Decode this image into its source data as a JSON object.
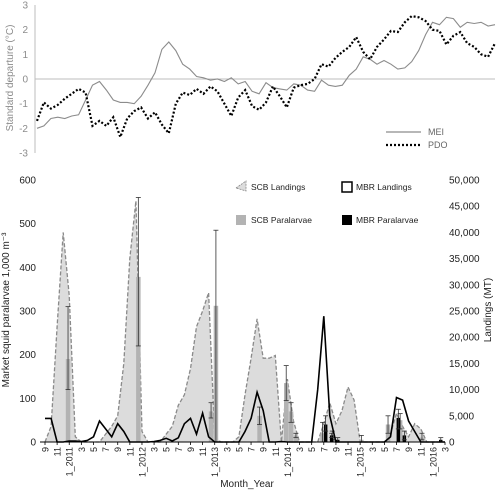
{
  "top_chart": {
    "type": "line",
    "ylabel": "Standard departure (°C)",
    "ylim": [
      -3,
      3
    ],
    "yticks": [
      3,
      2,
      1,
      0,
      -1,
      -2,
      -3
    ],
    "month_range": [
      1,
      67
    ],
    "legend": {
      "placement": "bottom-right"
    },
    "series": [
      {
        "name": "MEI",
        "style": "solid",
        "color": "#8c8c8c",
        "x": [
          1,
          2,
          3,
          4,
          5,
          6,
          7,
          8,
          9,
          10,
          11,
          12,
          13,
          14,
          15,
          16,
          17,
          18,
          19,
          20,
          21,
          22,
          23,
          24,
          25,
          26,
          27,
          28,
          29,
          30,
          31,
          32,
          33,
          34,
          35,
          36,
          37,
          38,
          39,
          40,
          41,
          42,
          43,
          44,
          45,
          46,
          47,
          48,
          49,
          50,
          51,
          52,
          53,
          54,
          55,
          56,
          57,
          58,
          59,
          60,
          61,
          62,
          63,
          64,
          65,
          66,
          67
        ],
        "y": [
          -2.0,
          -1.9,
          -1.6,
          -1.55,
          -1.6,
          -1.5,
          -1.45,
          -0.85,
          -0.25,
          -0.1,
          -0.45,
          -0.85,
          -0.95,
          -0.95,
          -1.0,
          -0.7,
          -0.25,
          0.25,
          1.2,
          1.5,
          1.15,
          0.6,
          0.4,
          0.1,
          0.05,
          -0.05,
          0.0,
          -0.1,
          0.05,
          -0.2,
          -0.1,
          -0.5,
          -0.6,
          -0.15,
          -0.35,
          -0.4,
          -0.45,
          -0.2,
          -0.25,
          -0.45,
          -0.5,
          -0.05,
          -0.25,
          -0.3,
          -0.25,
          0.15,
          0.4,
          0.9,
          0.8,
          0.6,
          0.75,
          0.6,
          0.4,
          0.45,
          0.7,
          1.15,
          1.8,
          2.3,
          2.2,
          2.5,
          2.45,
          2.1,
          2.3,
          2.25,
          2.3,
          2.15,
          2.2
        ]
      },
      {
        "name": "PDO",
        "style": "dotted",
        "color": "#000000",
        "x": [
          1,
          2,
          3,
          4,
          5,
          6,
          7,
          8,
          9,
          10,
          11,
          12,
          13,
          14,
          15,
          16,
          17,
          18,
          19,
          20,
          21,
          22,
          23,
          24,
          25,
          26,
          27,
          28,
          29,
          30,
          31,
          32,
          33,
          34,
          35,
          36,
          37,
          38,
          39,
          40,
          41,
          42,
          43,
          44,
          45,
          46,
          47,
          48,
          49,
          50,
          51,
          52,
          53,
          54,
          55,
          56,
          57,
          58,
          59,
          60,
          61,
          62,
          63,
          64,
          65,
          66,
          67
        ],
        "y": [
          -1.7,
          -0.95,
          -1.2,
          -1.05,
          -0.8,
          -0.6,
          -0.4,
          -0.55,
          -1.9,
          -1.7,
          -1.9,
          -1.55,
          -2.35,
          -1.6,
          -1.3,
          -1.15,
          -1.6,
          -1.35,
          -1.85,
          -2.2,
          -1.0,
          -0.55,
          -0.65,
          -0.4,
          -0.6,
          -0.3,
          -0.5,
          -1.0,
          -1.5,
          -0.75,
          -0.45,
          -1.1,
          -1.25,
          -0.95,
          -0.3,
          -0.7,
          -1.15,
          -0.35,
          -0.25,
          -0.2,
          0.0,
          0.6,
          0.5,
          0.85,
          1.1,
          1.3,
          1.7,
          1.1,
          0.8,
          1.3,
          1.6,
          1.95,
          1.9,
          2.3,
          2.55,
          2.5,
          2.35,
          2.0,
          1.95,
          1.4,
          1.75,
          1.9,
          1.45,
          1.3,
          1.0,
          0.9,
          1.45
        ]
      }
    ]
  },
  "bottom_chart": {
    "type": "bar+area+line",
    "xlabel": "Month_Year",
    "ylabel_left": "Market squid paralarvae 1,000 m⁻³",
    "ylabel_right": "Landings (MT)",
    "ylim_left": [
      0,
      600
    ],
    "ylim_right": [
      0,
      50000
    ],
    "yticks_left": [
      "600",
      "500",
      "400",
      "300",
      "200",
      "100",
      "0"
    ],
    "yticks_right": [
      "50,000",
      "45,000",
      "40,000",
      "35,000",
      "30,000",
      "25,000",
      "20,000",
      "15,000",
      "10,000",
      "5,000",
      "0"
    ],
    "month_range": [
      1,
      67
    ],
    "xticks": [
      {
        "m": 1,
        "label": "9"
      },
      {
        "m": 3,
        "label": "11"
      },
      {
        "m": 5,
        "label": "1_2011"
      },
      {
        "m": 7,
        "label": "3"
      },
      {
        "m": 9,
        "label": "5"
      },
      {
        "m": 11,
        "label": "7"
      },
      {
        "m": 13,
        "label": "9"
      },
      {
        "m": 15,
        "label": "11"
      },
      {
        "m": 17,
        "label": "1_2012"
      },
      {
        "m": 19,
        "label": "3"
      },
      {
        "m": 21,
        "label": "5"
      },
      {
        "m": 23,
        "label": "7"
      },
      {
        "m": 25,
        "label": "9"
      },
      {
        "m": 27,
        "label": "11"
      },
      {
        "m": 29,
        "label": "1_2013"
      },
      {
        "m": 31,
        "label": "3"
      },
      {
        "m": 33,
        "label": "5"
      },
      {
        "m": 35,
        "label": "7"
      },
      {
        "m": 37,
        "label": "9"
      },
      {
        "m": 39,
        "label": "11"
      },
      {
        "m": 41,
        "label": "1_2014"
      },
      {
        "m": 43,
        "label": "3"
      },
      {
        "m": 45,
        "label": "5"
      },
      {
        "m": 47,
        "label": "7"
      },
      {
        "m": 49,
        "label": "9"
      },
      {
        "m": 51,
        "label": "11"
      },
      {
        "m": 53,
        "label": "1_2015"
      },
      {
        "m": 55,
        "label": "3"
      },
      {
        "m": 57,
        "label": "5"
      },
      {
        "m": 59,
        "label": "7"
      },
      {
        "m": 61,
        "label": "9"
      },
      {
        "m": 63,
        "label": "11"
      },
      {
        "m": 65,
        "label": "1_2016"
      },
      {
        "m": 67,
        "label": "3"
      }
    ],
    "legend": [
      {
        "key": "scb_landings",
        "label": "SCB Landings",
        "placement": "top-left"
      },
      {
        "key": "mbr_landings",
        "label": "MBR Landings",
        "placement": "top-right"
      },
      {
        "key": "scb_paralarvae",
        "label": "SCB Paralarvae",
        "placement": "top-left"
      },
      {
        "key": "mbr_paralarvae",
        "label": "MBR Paralarvae",
        "placement": "top-right"
      }
    ],
    "scb_landings": {
      "axis": "right",
      "color": "#dcdcdc",
      "points": [
        [
          1,
          0
        ],
        [
          2,
          3000
        ],
        [
          3,
          22000
        ],
        [
          4,
          40000
        ],
        [
          5,
          28000
        ],
        [
          6,
          1000
        ],
        [
          7,
          0
        ],
        [
          10,
          0
        ],
        [
          11,
          1500
        ],
        [
          12,
          3000
        ],
        [
          13,
          5000
        ],
        [
          14,
          15000
        ],
        [
          15,
          35000
        ],
        [
          16,
          46000
        ],
        [
          17,
          2000
        ],
        [
          18,
          0
        ],
        [
          20,
          0
        ],
        [
          21,
          1500
        ],
        [
          22,
          3000
        ],
        [
          23,
          7000
        ],
        [
          24,
          9000
        ],
        [
          25,
          14000
        ],
        [
          26,
          22000
        ],
        [
          27,
          25000
        ],
        [
          28,
          28500
        ],
        [
          29,
          1000
        ],
        [
          30,
          0
        ],
        [
          32,
          0
        ],
        [
          33,
          1000
        ],
        [
          34,
          9000
        ],
        [
          35,
          16000
        ],
        [
          36,
          23500
        ],
        [
          37,
          16000
        ],
        [
          38,
          16000
        ],
        [
          39,
          16500
        ],
        [
          40,
          0
        ],
        [
          41,
          12000
        ],
        [
          42,
          4000
        ],
        [
          43,
          0
        ],
        [
          46,
          0
        ],
        [
          47,
          3500
        ],
        [
          48,
          7500
        ],
        [
          49,
          3500
        ],
        [
          50,
          6000
        ],
        [
          51,
          10500
        ],
        [
          52,
          8000
        ],
        [
          53,
          0
        ],
        [
          55,
          0
        ],
        [
          57,
          0
        ],
        [
          58,
          1500
        ],
        [
          59,
          5500
        ],
        [
          60,
          3000
        ],
        [
          61,
          1000
        ],
        [
          62,
          3500
        ],
        [
          63,
          2500
        ],
        [
          64,
          0
        ],
        [
          67,
          0
        ]
      ]
    },
    "mbr_landings": {
      "axis": "right",
      "color": "#000000",
      "points": [
        [
          1,
          4500
        ],
        [
          2,
          4500
        ],
        [
          3,
          0
        ],
        [
          4,
          0
        ],
        [
          5,
          200
        ],
        [
          6,
          200
        ],
        [
          7,
          100
        ],
        [
          8,
          300
        ],
        [
          9,
          1000
        ],
        [
          10,
          4000
        ],
        [
          11,
          2500
        ],
        [
          12,
          1000
        ],
        [
          13,
          3500
        ],
        [
          14,
          2000
        ],
        [
          15,
          0
        ],
        [
          16,
          0
        ],
        [
          17,
          0
        ],
        [
          18,
          0
        ],
        [
          19,
          100
        ],
        [
          20,
          300
        ],
        [
          21,
          700
        ],
        [
          22,
          200
        ],
        [
          23,
          800
        ],
        [
          24,
          3500
        ],
        [
          25,
          4500
        ],
        [
          26,
          1500
        ],
        [
          27,
          5500
        ],
        [
          28,
          1000
        ],
        [
          29,
          0
        ],
        [
          30,
          0
        ],
        [
          31,
          0
        ],
        [
          32,
          0
        ],
        [
          33,
          0
        ],
        [
          34,
          2000
        ],
        [
          35,
          4500
        ],
        [
          36,
          9500
        ],
        [
          37,
          6000
        ],
        [
          38,
          0
        ],
        [
          39,
          0
        ],
        [
          40,
          100
        ],
        [
          41,
          0
        ],
        [
          42,
          0
        ],
        [
          43,
          0
        ],
        [
          44,
          0
        ],
        [
          45,
          0
        ],
        [
          46,
          10000
        ],
        [
          47,
          24000
        ],
        [
          48,
          5000
        ],
        [
          49,
          0
        ],
        [
          50,
          0
        ],
        [
          51,
          0
        ],
        [
          52,
          0
        ],
        [
          53,
          0
        ],
        [
          54,
          0
        ],
        [
          55,
          0
        ],
        [
          56,
          0
        ],
        [
          57,
          0
        ],
        [
          58,
          1000
        ],
        [
          59,
          8500
        ],
        [
          60,
          8000
        ],
        [
          61,
          4000
        ],
        [
          62,
          2000
        ],
        [
          63,
          0
        ],
        [
          64,
          0
        ],
        [
          65,
          0
        ],
        [
          66,
          0
        ],
        [
          67,
          0
        ]
      ]
    },
    "scb_paralarvae": {
      "axis": "left",
      "color": "#b3b3b3",
      "bars": [
        {
          "m": 4.8,
          "v": 190,
          "err_lo": 120,
          "err_hi": 310
        },
        {
          "m": 16.4,
          "v": 378,
          "err_lo": 220,
          "err_hi": 560
        },
        {
          "m": 28.4,
          "v": 70,
          "err_lo": 55,
          "err_hi": 90
        },
        {
          "m": 29.2,
          "v": 312,
          "err_lo": 0,
          "err_hi": 485
        },
        {
          "m": 36.4,
          "v": 60,
          "err_lo": 40,
          "err_hi": 80
        },
        {
          "m": 40.8,
          "v": 135,
          "err_lo": 95,
          "err_hi": 175
        },
        {
          "m": 41.6,
          "v": 70,
          "err_lo": 45,
          "err_hi": 90
        },
        {
          "m": 42.4,
          "v": 15,
          "err_lo": 10,
          "err_hi": 20
        },
        {
          "m": 46.8,
          "v": 20,
          "err_lo": 0,
          "err_hi": 45
        },
        {
          "m": 48.4,
          "v": 15,
          "err_lo": 5,
          "err_hi": 25
        },
        {
          "m": 53.2,
          "v": 5,
          "err_lo": 0,
          "err_hi": 15
        },
        {
          "m": 57.6,
          "v": 40,
          "err_lo": 20,
          "err_hi": 60
        },
        {
          "m": 59.6,
          "v": 50,
          "err_lo": 30,
          "err_hi": 65
        },
        {
          "m": 63.2,
          "v": 10,
          "err_lo": 5,
          "err_hi": 20
        }
      ]
    },
    "mbr_paralarvae": {
      "axis": "left",
      "color": "#000000",
      "bars": [
        {
          "m": 47.3,
          "v": 40,
          "err_lo": 25,
          "err_hi": 60
        },
        {
          "m": 48.3,
          "v": 15,
          "err_lo": 10,
          "err_hi": 20
        },
        {
          "m": 49.3,
          "v": 5,
          "err_lo": 0,
          "err_hi": 10
        },
        {
          "m": 59.3,
          "v": 55,
          "err_lo": 30,
          "err_hi": 75
        },
        {
          "m": 60.3,
          "v": 15,
          "err_lo": 5,
          "err_hi": 25
        },
        {
          "m": 66.3,
          "v": 5,
          "err_lo": 0,
          "err_hi": 10
        }
      ]
    }
  }
}
